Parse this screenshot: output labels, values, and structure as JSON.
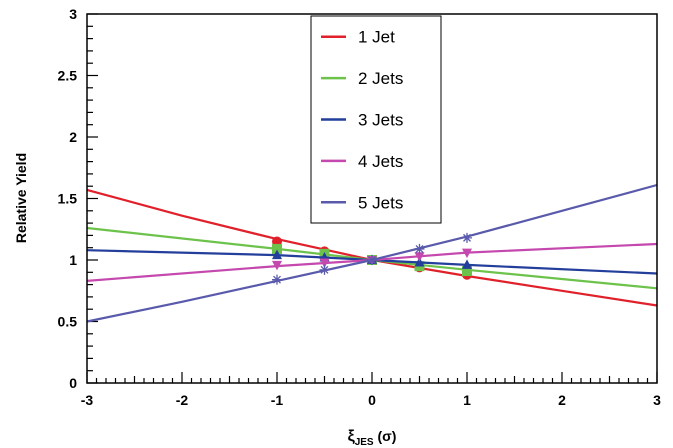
{
  "chart_data": {
    "type": "line",
    "xlabel": {
      "main": "ξ",
      "sub": "JES",
      "suffix": " (σ)"
    },
    "ylabel": "Relative Yield",
    "xlim": [
      -3,
      3
    ],
    "ylim": [
      0,
      3
    ],
    "x_ticks": [
      -3,
      -2,
      -1,
      0,
      1,
      2,
      3
    ],
    "x_tick_labels": [
      "-3",
      "-2",
      "-1",
      "0",
      "1",
      "2",
      "3"
    ],
    "y_ticks": [
      0,
      0.5,
      1,
      1.5,
      2,
      2.5,
      3
    ],
    "y_tick_labels": [
      "0",
      "0.5",
      "1",
      "1.5",
      "2",
      "2.5",
      "3"
    ],
    "grid": false,
    "legend_position": "top-center",
    "series": [
      {
        "name": "1 Jet",
        "color": "#e0202a",
        "marker": "circle",
        "line": {
          "x": [
            -3,
            -2,
            -1,
            0,
            1,
            2,
            3
          ],
          "y": [
            1.57,
            1.36,
            1.17,
            1.0,
            0.87,
            0.75,
            0.63
          ]
        },
        "points": {
          "x": [
            -1,
            -0.5,
            0,
            0.5,
            1
          ],
          "y": [
            1.15,
            1.07,
            1.0,
            0.94,
            0.88
          ]
        }
      },
      {
        "name": "2 Jets",
        "color": "#6cc24a",
        "marker": "square",
        "line": {
          "x": [
            -3,
            -1,
            0,
            1,
            3
          ],
          "y": [
            1.26,
            1.09,
            1.0,
            0.92,
            0.77
          ]
        },
        "points": {
          "x": [
            -1,
            -0.5,
            0,
            0.5,
            1
          ],
          "y": [
            1.09,
            1.05,
            1.0,
            0.95,
            0.91
          ]
        }
      },
      {
        "name": "3 Jets",
        "color": "#233e9b",
        "marker": "triangle-up",
        "line": {
          "x": [
            -3,
            -1,
            0,
            1,
            3
          ],
          "y": [
            1.08,
            1.04,
            1.0,
            0.96,
            0.89
          ]
        },
        "points": {
          "x": [
            -1,
            -0.5,
            0,
            0.5,
            1
          ],
          "y": [
            1.04,
            1.02,
            1.0,
            0.98,
            0.96
          ]
        }
      },
      {
        "name": "4 Jets",
        "color": "#c448ae",
        "marker": "triangle-down",
        "line": {
          "x": [
            -3,
            -1,
            0,
            1,
            3
          ],
          "y": [
            0.83,
            0.95,
            1.0,
            1.06,
            1.13
          ]
        },
        "points": {
          "x": [
            -1,
            -0.5,
            0,
            0.5,
            1
          ],
          "y": [
            0.96,
            0.98,
            1.0,
            1.03,
            1.06
          ]
        }
      },
      {
        "name": "5 Jets",
        "color": "#5a5aac",
        "marker": "star",
        "line": {
          "x": [
            -3,
            -2,
            -1,
            0,
            1,
            2,
            3
          ],
          "y": [
            0.5,
            0.66,
            0.83,
            1.0,
            1.19,
            1.4,
            1.61
          ]
        },
        "points": {
          "x": [
            -1,
            -0.5,
            0,
            0.5,
            1
          ],
          "y": [
            0.84,
            0.92,
            1.0,
            1.09,
            1.18
          ]
        }
      }
    ]
  }
}
